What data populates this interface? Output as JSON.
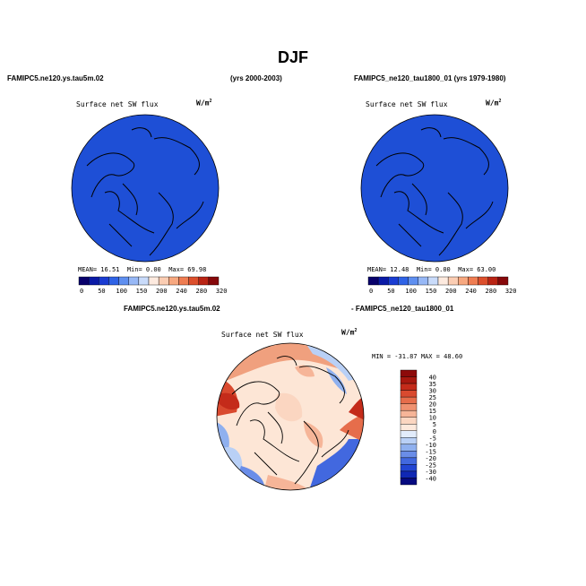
{
  "page": {
    "title": "DJF"
  },
  "colors": {
    "ocean_top": "#1e4fd6",
    "ocean_bottom": "#1f50d8",
    "coast": "#000000"
  },
  "top_left": {
    "case_name": "FAMIPC5.ne120.ys.tau5m.02",
    "years": "(yrs 2000-2003)",
    "variable": "Surface net SW flux",
    "units": "W/m",
    "units_sup": "2",
    "stats": {
      "mean_label": "MEAN=",
      "mean": "16.51",
      "min_label": "Min=",
      "min": "0.00",
      "max_label": "Max=",
      "max": "69.98"
    }
  },
  "top_right": {
    "case_name": "FAMIPC5_ne120_tau1800_01 (yrs 1979-1980)",
    "variable": "Surface net SW flux",
    "units": "W/m",
    "units_sup": "2",
    "stats": {
      "mean_label": "MEAN=",
      "mean": "12.48",
      "min_label": "Min=",
      "min": "0.00",
      "max_label": "Max=",
      "max": "63.00"
    }
  },
  "bottom": {
    "case_a": "FAMIPC5.ne120.ys.tau5m.02",
    "case_b": "- FAMIPC5_ne120_tau1800_01",
    "variable": "Surface net SW flux",
    "units": "W/m",
    "units_sup": "2",
    "stats": {
      "min_label": "MIN =",
      "min": "-31.87",
      "max_label": "MAX =",
      "max": "48.60"
    }
  },
  "chart_data": [
    {
      "type": "heatmap",
      "title": "Surface net SW flux",
      "colorbar": {
        "orientation": "horizontal",
        "ticks": [
          "0",
          "50",
          "100",
          "150",
          "200",
          "240",
          "280",
          "320"
        ],
        "colors": [
          "#08006b",
          "#0a1aa6",
          "#1a3cd2",
          "#2f63e6",
          "#5f8ff0",
          "#97b8f6",
          "#c9dbfa",
          "#fdeadf",
          "#fbcdb3",
          "#f7a880",
          "#ef7d52",
          "#dc4f2c",
          "#b92414",
          "#86080a"
        ]
      }
    },
    {
      "type": "heatmap",
      "title": "Surface net SW flux",
      "colorbar": {
        "orientation": "horizontal",
        "ticks": [
          "0",
          "50",
          "100",
          "150",
          "200",
          "240",
          "280",
          "320"
        ],
        "colors": [
          "#08006b",
          "#0a1aa6",
          "#1a3cd2",
          "#2f63e6",
          "#5f8ff0",
          "#97b8f6",
          "#c9dbfa",
          "#fdeadf",
          "#fbcdb3",
          "#f7a880",
          "#ef7d52",
          "#dc4f2c",
          "#b92414",
          "#86080a"
        ]
      }
    },
    {
      "type": "heatmap",
      "title": "Surface net SW flux",
      "colorbar": {
        "orientation": "vertical",
        "ticks": [
          "40",
          "35",
          "30",
          "25",
          "20",
          "15",
          "10",
          "5",
          "0",
          "-5",
          "-10",
          "-15",
          "-20",
          "-25",
          "-30",
          "-40"
        ],
        "colors": [
          "#8d0a0a",
          "#a8180f",
          "#c42b1a",
          "#d94a2f",
          "#e66d4b",
          "#ef9170",
          "#f6b598",
          "#fbd6c1",
          "#fde9dc",
          "#e2ecfb",
          "#b9d0f6",
          "#8fb0ef",
          "#6a8de8",
          "#4268df",
          "#2245d3",
          "#1028b4",
          "#060a80"
        ]
      }
    }
  ]
}
